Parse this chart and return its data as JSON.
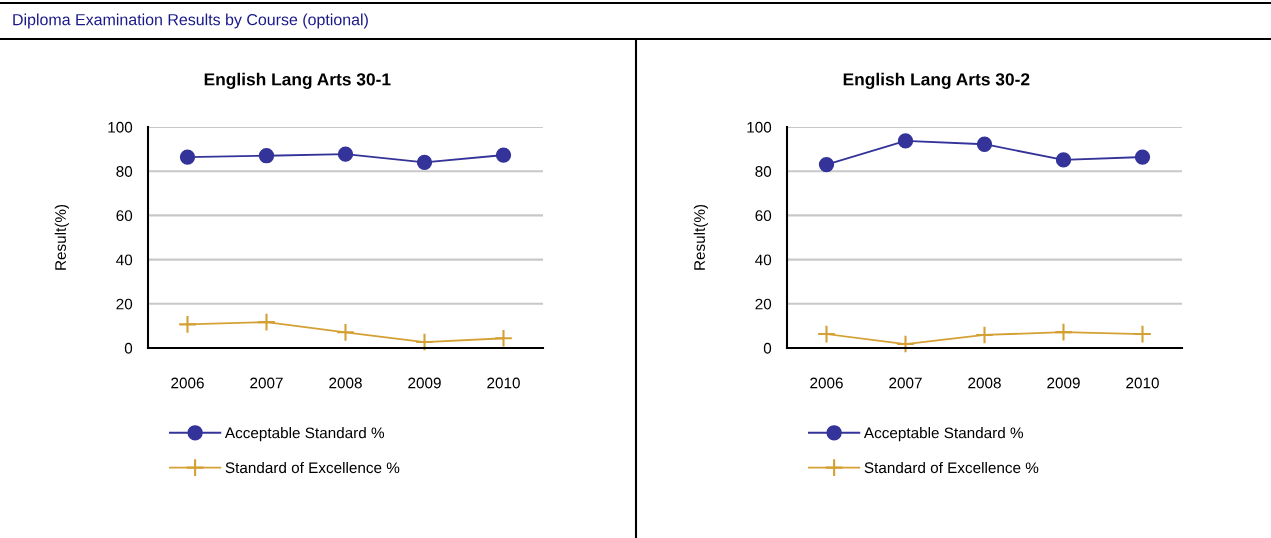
{
  "chart_data": [
    {
      "type": "line",
      "title": "English Lang Arts 30-1",
      "ylabel": "Result(%)",
      "categories": [
        "2006",
        "2007",
        "2008",
        "2009",
        "2010"
      ],
      "series": [
        {
          "name": "Acceptable Standard %",
          "color": "#333399",
          "marker": "circle",
          "values": [
            86.4,
            87.0,
            87.7,
            84.0,
            87.3
          ]
        },
        {
          "name": "Standard of Excellence %",
          "color": "#d4a033",
          "marker": "cross",
          "values": [
            10.7,
            11.7,
            7.1,
            2.7,
            4.4
          ]
        }
      ],
      "ylim": [
        0,
        100
      ],
      "yticks": [
        0,
        20,
        40,
        60,
        80,
        100
      ],
      "grid": "y",
      "legend": "bottom",
      "line_style": "solid",
      "annotations": [
        "Diploma Examination Results by Course (optional)"
      ]
    },
    {
      "type": "line",
      "title": "English Lang Arts 30-2",
      "ylabel": "Result(%)",
      "categories": [
        "2006",
        "2007",
        "2008",
        "2009",
        "2010"
      ],
      "series": [
        {
          "name": "Acceptable Standard %",
          "color": "#333399",
          "marker": "circle",
          "values": [
            83.0,
            93.7,
            92.2,
            85.1,
            86.4
          ]
        },
        {
          "name": "Standard of Excellence %",
          "color": "#d4a033",
          "marker": "cross",
          "values": [
            6.3,
            1.8,
            5.9,
            7.2,
            6.3
          ]
        }
      ],
      "ylim": [
        0,
        100
      ],
      "yticks": [
        0,
        20,
        40,
        60,
        80,
        100
      ],
      "grid": "y",
      "legend": "bottom",
      "line_style": "solid"
    }
  ]
}
